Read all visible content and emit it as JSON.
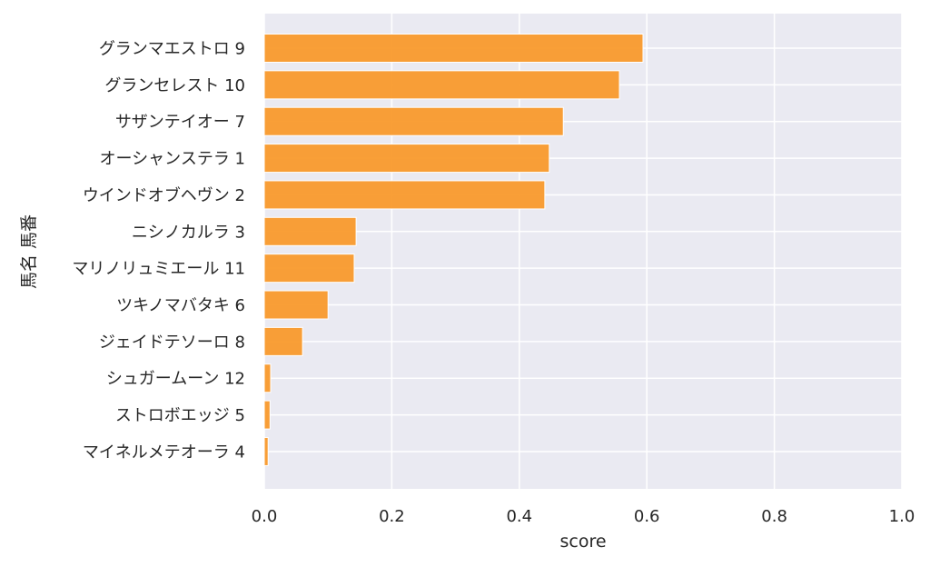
{
  "chart_data": {
    "type": "bar",
    "orientation": "horizontal",
    "categories": [
      "グランマエストロ 9",
      "グランセレスト 10",
      "サザンテイオー 7",
      "オーシャンステラ 1",
      "ウインドオブヘヴン 2",
      "ニシノカルラ 3",
      "マリノリュミエール 11",
      "ツキノマバタキ 6",
      "ジェイドテソーロ 8",
      "シュガームーン 12",
      "ストロボエッジ 5",
      "マイネルメテオーラ 4"
    ],
    "values": [
      0.594,
      0.557,
      0.469,
      0.447,
      0.44,
      0.144,
      0.141,
      0.1,
      0.06,
      0.01,
      0.009,
      0.006
    ],
    "xlabel": "score",
    "ylabel": "馬名 馬番",
    "xlim": [
      0,
      1
    ],
    "xticks": [
      "0.0",
      "0.2",
      "0.4",
      "0.6",
      "0.8",
      "1.0"
    ],
    "grid": true,
    "colors": {
      "bar": "#f99a2c",
      "background": "#eaeaf2",
      "grid": "#ffffff"
    }
  }
}
